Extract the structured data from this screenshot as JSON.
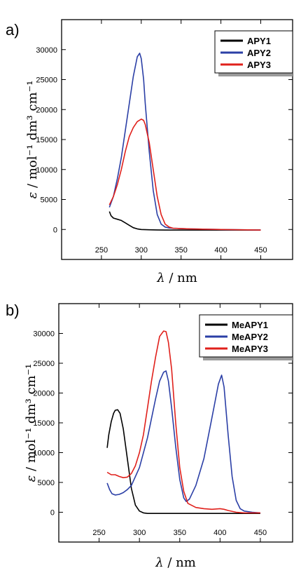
{
  "figure": {
    "panels": [
      "a)",
      "b)"
    ]
  },
  "chart_data": [
    {
      "type": "line",
      "panel_label": "a)",
      "xlabel_symbol": "λ",
      "xlabel_unit": " / nm",
      "ylabel_symbol": "ε",
      "ylabel_unit": " / mol⁻¹ dm³ cm⁻¹",
      "xlim": [
        200,
        490
      ],
      "ylim": [
        -5000,
        35000
      ],
      "x_ticks": [
        250,
        300,
        350,
        400,
        450
      ],
      "y_ticks": [
        0,
        5000,
        10000,
        15000,
        20000,
        25000,
        30000
      ],
      "grid": false,
      "legend_position": "top-right",
      "series": [
        {
          "name": "APY1",
          "color": "#000000",
          "x": [
            260,
            262,
            265,
            270,
            275,
            280,
            285,
            290,
            295,
            300,
            310,
            320,
            330,
            350,
            400,
            450
          ],
          "y": [
            3000,
            2300,
            1900,
            1700,
            1500,
            1100,
            700,
            300,
            100,
            0,
            -50,
            -80,
            -100,
            -100,
            -100,
            -100
          ]
        },
        {
          "name": "APY2",
          "color": "#2b3fa6",
          "x": [
            260,
            265,
            270,
            275,
            280,
            285,
            290,
            295,
            298,
            300,
            303,
            305,
            310,
            315,
            320,
            325,
            330,
            335,
            340,
            360,
            400,
            450
          ],
          "y": [
            3700,
            5500,
            8500,
            12000,
            16500,
            21000,
            25500,
            28800,
            29400,
            28500,
            25000,
            21000,
            13000,
            6500,
            2500,
            900,
            400,
            250,
            200,
            100,
            0,
            -100
          ]
        },
        {
          "name": "APY3",
          "color": "#e0201b",
          "x": [
            260,
            265,
            270,
            275,
            280,
            285,
            290,
            295,
            300,
            303,
            305,
            310,
            315,
            320,
            325,
            330,
            335,
            340,
            360,
            400,
            450
          ],
          "y": [
            4100,
            5500,
            7500,
            10000,
            13000,
            15500,
            17000,
            18000,
            18400,
            18200,
            17500,
            14500,
            10000,
            5500,
            2500,
            900,
            400,
            200,
            100,
            0,
            -100
          ]
        }
      ]
    },
    {
      "type": "line",
      "panel_label": "b)",
      "xlabel_symbol": "λ",
      "xlabel_unit": " / nm",
      "ylabel_symbol": "ε",
      "ylabel_unit": " / mol⁻¹ dm³ cm⁻¹",
      "xlim": [
        200,
        490
      ],
      "ylim": [
        -5000,
        35000
      ],
      "x_ticks": [
        250,
        300,
        350,
        400,
        450
      ],
      "y_ticks": [
        0,
        5000,
        10000,
        15000,
        20000,
        25000,
        30000
      ],
      "grid": false,
      "legend_position": "top-right",
      "series": [
        {
          "name": "MeAPY1",
          "color": "#000000",
          "x": [
            260,
            262,
            265,
            268,
            270,
            273,
            276,
            280,
            285,
            290,
            295,
            300,
            305,
            310,
            320,
            350,
            400,
            450
          ],
          "y": [
            10800,
            13000,
            15200,
            16600,
            17100,
            17200,
            16600,
            14000,
            9000,
            4000,
            1200,
            200,
            -100,
            -200,
            -200,
            -200,
            -200,
            -200
          ]
        },
        {
          "name": "MeAPY2",
          "color": "#2b3fa6",
          "x": [
            260,
            263,
            266,
            270,
            275,
            280,
            285,
            290,
            300,
            310,
            320,
            325,
            330,
            333,
            336,
            340,
            345,
            350,
            355,
            358,
            362,
            370,
            380,
            388,
            393,
            398,
            402,
            405,
            410,
            415,
            420,
            425,
            430,
            440,
            450
          ],
          "y": [
            4900,
            3800,
            3100,
            2900,
            3000,
            3300,
            3800,
            4500,
            7500,
            12500,
            19000,
            22000,
            23500,
            23700,
            22000,
            17500,
            11000,
            5500,
            2400,
            1800,
            2200,
            4500,
            9000,
            14500,
            18000,
            21500,
            23000,
            21000,
            13000,
            6000,
            2000,
            600,
            200,
            0,
            -100
          ]
        },
        {
          "name": "MeAPY3",
          "color": "#e0201b",
          "x": [
            260,
            265,
            270,
            275,
            280,
            285,
            290,
            295,
            300,
            305,
            310,
            315,
            320,
            325,
            330,
            333,
            336,
            340,
            345,
            350,
            355,
            360,
            370,
            380,
            390,
            400,
            405,
            410,
            420,
            430,
            450
          ],
          "y": [
            6700,
            6300,
            6300,
            6000,
            5800,
            5900,
            6500,
            7800,
            10000,
            13000,
            17500,
            22000,
            26000,
            29500,
            30400,
            30300,
            28500,
            24000,
            15000,
            7500,
            3500,
            1500,
            800,
            600,
            500,
            600,
            500,
            300,
            0,
            -100,
            -100
          ]
        }
      ]
    }
  ]
}
